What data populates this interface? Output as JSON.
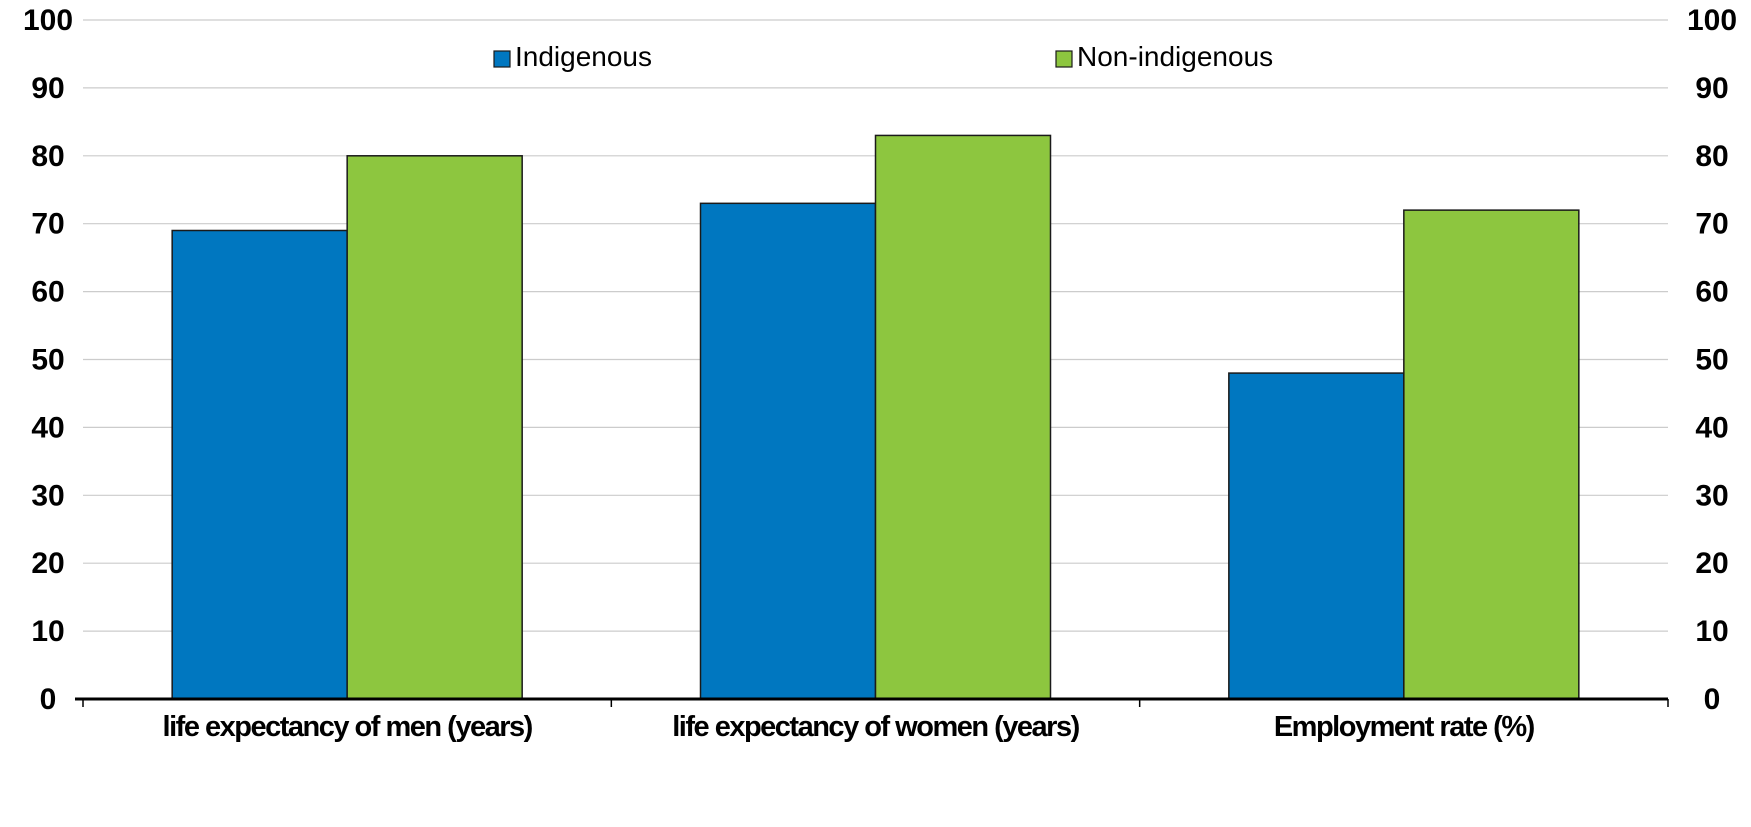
{
  "chart_data": {
    "type": "bar",
    "categories": [
      "life expectancy of men (years)",
      "life expectancy of women (years)",
      "Employment rate (%)"
    ],
    "series": [
      {
        "name": "Indigenous",
        "values": [
          69,
          73,
          48
        ],
        "color": "#0077c0"
      },
      {
        "name": "Non-indigenous",
        "values": [
          80,
          83,
          72
        ],
        "color": "#8dc63f"
      }
    ],
    "ylim": [
      0,
      100
    ],
    "yticks": [
      0,
      10,
      20,
      30,
      40,
      50,
      60,
      70,
      80,
      90,
      100
    ],
    "secondary_axis": true,
    "grid": true,
    "legend_position": "top-center"
  }
}
